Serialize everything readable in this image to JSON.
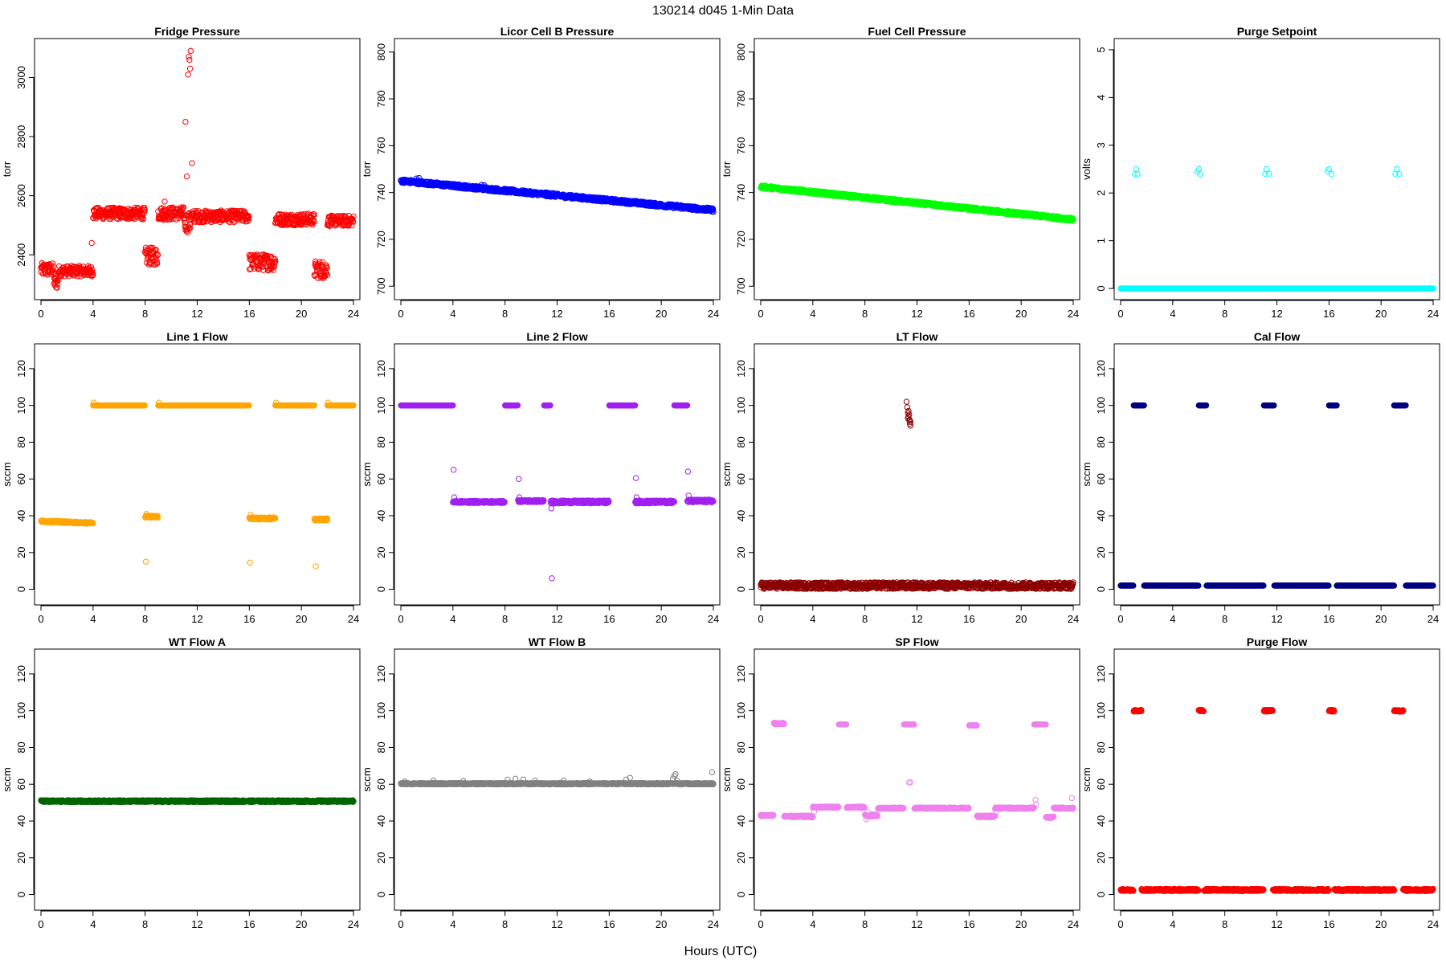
{
  "figure": {
    "title": "130214   d045   1-Min Data",
    "xlabel": "Hours (UTC)"
  },
  "chart_data": [
    {
      "type": "scatter",
      "title": "Fridge Pressure",
      "ylabel": "torr",
      "color": "#ff0000",
      "xlim": [
        0,
        24
      ],
      "ylim": [
        2270,
        3110
      ],
      "xticks": [
        0,
        4,
        8,
        12,
        16,
        20,
        24
      ],
      "yticks": [
        2400,
        2600,
        2800,
        3000
      ],
      "segments": [
        {
          "x": [
            0,
            1
          ],
          "y": 2350,
          "spread": 22
        },
        {
          "x": [
            1,
            1.3
          ],
          "y": 2305,
          "spread": 20
        },
        {
          "x": [
            1.3,
            4
          ],
          "y": 2345,
          "spread": 18
        },
        {
          "x": [
            4,
            8
          ],
          "y": 2540,
          "spread": 20
        },
        {
          "x": [
            8,
            9
          ],
          "y": 2395,
          "spread": 30
        },
        {
          "x": [
            9,
            11
          ],
          "y": 2540,
          "spread": 22
        },
        {
          "x": [
            11,
            11.5
          ],
          "y": 2510,
          "spread": 35
        },
        {
          "x": [
            11.5,
            16
          ],
          "y": 2530,
          "spread": 20
        },
        {
          "x": [
            16,
            18
          ],
          "y": 2375,
          "spread": 28
        },
        {
          "x": [
            18,
            21
          ],
          "y": 2520,
          "spread": 20
        },
        {
          "x": [
            21,
            22
          ],
          "y": 2350,
          "spread": 30
        },
        {
          "x": [
            22,
            24
          ],
          "y": 2515,
          "spread": 18
        }
      ],
      "points": [
        [
          11.1,
          2850
        ],
        [
          11.3,
          3010
        ],
        [
          11.4,
          3060
        ],
        [
          11.5,
          3090
        ],
        [
          11.45,
          3030
        ],
        [
          11.35,
          3070
        ],
        [
          11.6,
          2710
        ],
        [
          11.2,
          2665
        ],
        [
          3.9,
          2440
        ],
        [
          9.5,
          2580
        ]
      ]
    },
    {
      "type": "scatter",
      "title": "Licor Cell B Pressure",
      "ylabel": "torr",
      "color": "#0000ff",
      "xlim": [
        0,
        24
      ],
      "ylim": [
        697,
        803
      ],
      "xticks": [
        0,
        4,
        8,
        12,
        16,
        20,
        24
      ],
      "yticks": [
        700,
        720,
        740,
        760,
        780,
        800
      ],
      "segments": [
        {
          "x": [
            0,
            24
          ],
          "y": [
            745,
            732.5
          ],
          "spread": 0.8
        }
      ],
      "points": [
        [
          1.2,
          746
        ],
        [
          1.4,
          746.2
        ],
        [
          6.2,
          743.3
        ],
        [
          6.4,
          743.1
        ],
        [
          11.2,
          740
        ],
        [
          11.6,
          739.8
        ],
        [
          16.2,
          737
        ],
        [
          16.4,
          736.8
        ],
        [
          21.2,
          734.8
        ],
        [
          21.5,
          734.6
        ]
      ]
    },
    {
      "type": "scatter",
      "title": "Fuel Cell Pressure",
      "ylabel": "torr",
      "color": "#00ff00",
      "xlim": [
        0,
        24
      ],
      "ylim": [
        697,
        803
      ],
      "xticks": [
        0,
        4,
        8,
        12,
        16,
        20,
        24
      ],
      "yticks": [
        700,
        720,
        740,
        760,
        780,
        800
      ],
      "segments": [
        {
          "x": [
            0,
            24
          ],
          "y": [
            742.5,
            728.5
          ],
          "spread": 0.7
        }
      ],
      "points": []
    },
    {
      "type": "scatter",
      "title": "Purge Setpoint",
      "ylabel": "volts",
      "color": "#00ffff",
      "xlim": [
        0,
        24
      ],
      "ylim": [
        -0.1,
        5.1
      ],
      "xticks": [
        0,
        4,
        8,
        12,
        16,
        20,
        24
      ],
      "yticks": [
        0,
        1,
        2,
        3,
        4,
        5
      ],
      "segments": [
        {
          "x": [
            0,
            24
          ],
          "y": 0,
          "spread": 0
        }
      ],
      "points": [
        [
          1.1,
          2.4
        ],
        [
          1.2,
          2.5
        ],
        [
          1.3,
          2.4
        ],
        [
          5.9,
          2.45
        ],
        [
          6.0,
          2.5
        ],
        [
          6.1,
          2.4
        ],
        [
          11.1,
          2.4
        ],
        [
          11.2,
          2.5
        ],
        [
          11.4,
          2.4
        ],
        [
          15.9,
          2.45
        ],
        [
          16.0,
          2.5
        ],
        [
          16.2,
          2.4
        ],
        [
          21.1,
          2.4
        ],
        [
          21.2,
          2.5
        ],
        [
          21.4,
          2.4
        ]
      ]
    },
    {
      "type": "scatter",
      "title": "Line 1 Flow",
      "ylabel": "sccm",
      "color": "#ffa500",
      "xlim": [
        0,
        24
      ],
      "ylim": [
        -5,
        130
      ],
      "xticks": [
        0,
        4,
        8,
        12,
        16,
        20,
        24
      ],
      "yticks": [
        0,
        20,
        40,
        60,
        80,
        100,
        120
      ],
      "segments": [
        {
          "x": [
            0,
            4
          ],
          "y": [
            37,
            36
          ],
          "spread": 0.5
        },
        {
          "x": [
            4,
            8
          ],
          "y": 100,
          "spread": 0
        },
        {
          "x": [
            8,
            9
          ],
          "y": 39.5,
          "spread": 0.5
        },
        {
          "x": [
            9,
            16
          ],
          "y": 100,
          "spread": 0
        },
        {
          "x": [
            16,
            18
          ],
          "y": 38.5,
          "spread": 0.6
        },
        {
          "x": [
            18,
            21
          ],
          "y": 100,
          "spread": 0
        },
        {
          "x": [
            21,
            22
          ],
          "y": 38,
          "spread": 0.6
        },
        {
          "x": [
            22,
            24
          ],
          "y": 100,
          "spread": 0
        }
      ],
      "points": [
        [
          4.05,
          101.5
        ],
        [
          9.05,
          101.5
        ],
        [
          18.05,
          101.5
        ],
        [
          22.05,
          101.5
        ],
        [
          8.05,
          15
        ],
        [
          16.05,
          14.5
        ],
        [
          21.1,
          12.5
        ],
        [
          8.1,
          41
        ],
        [
          16.1,
          40.5
        ]
      ]
    },
    {
      "type": "scatter",
      "title": "Line 2 Flow",
      "ylabel": "sccm",
      "color": "#a020f0",
      "xlim": [
        0,
        24
      ],
      "ylim": [
        -5,
        130
      ],
      "xticks": [
        0,
        4,
        8,
        12,
        16,
        20,
        24
      ],
      "yticks": [
        0,
        20,
        40,
        60,
        80,
        100,
        120
      ],
      "segments": [
        {
          "x": [
            0,
            4
          ],
          "y": 100,
          "spread": 0
        },
        {
          "x": [
            4,
            8
          ],
          "y": 47.5,
          "spread": 0.6
        },
        {
          "x": [
            8,
            9
          ],
          "y": 100,
          "spread": 0
        },
        {
          "x": [
            9,
            11
          ],
          "y": 48,
          "spread": 0.6
        },
        {
          "x": [
            11,
            11.5
          ],
          "y": 100,
          "spread": 0
        },
        {
          "x": [
            11.5,
            16
          ],
          "y": 47.5,
          "spread": 0.8
        },
        {
          "x": [
            16,
            18
          ],
          "y": 100,
          "spread": 0
        },
        {
          "x": [
            18,
            21
          ],
          "y": 47.5,
          "spread": 0.8
        },
        {
          "x": [
            21,
            22
          ],
          "y": 100,
          "spread": 0
        },
        {
          "x": [
            22,
            24
          ],
          "y": 48,
          "spread": 0.8
        }
      ],
      "points": [
        [
          4.05,
          65
        ],
        [
          4.1,
          50
        ],
        [
          9.05,
          60
        ],
        [
          9.1,
          50
        ],
        [
          11.6,
          6
        ],
        [
          11.55,
          44
        ],
        [
          18.05,
          60.5
        ],
        [
          18.1,
          50
        ],
        [
          22.05,
          64
        ],
        [
          22.1,
          51
        ]
      ]
    },
    {
      "type": "scatter",
      "title": "LT Flow",
      "ylabel": "sccm",
      "color": "#8b0000",
      "xlim": [
        0,
        24
      ],
      "ylim": [
        -5,
        130
      ],
      "xticks": [
        0,
        4,
        8,
        12,
        16,
        20,
        24
      ],
      "yticks": [
        0,
        20,
        40,
        60,
        80,
        100,
        120
      ],
      "segments": [
        {
          "x": [
            0,
            24
          ],
          "y": 2,
          "spread": 1.8
        }
      ],
      "points": [
        [
          11.2,
          102
        ],
        [
          11.25,
          99
        ],
        [
          11.3,
          96
        ],
        [
          11.35,
          94
        ],
        [
          11.4,
          92
        ],
        [
          11.45,
          90
        ],
        [
          11.5,
          91
        ],
        [
          11.3,
          93
        ],
        [
          11.4,
          95
        ],
        [
          11.5,
          89
        ],
        [
          11.35,
          97
        ],
        [
          11.45,
          92
        ]
      ]
    },
    {
      "type": "scatter",
      "title": "Cal Flow",
      "ylabel": "sccm",
      "color": "#000080",
      "xlim": [
        0,
        24
      ],
      "ylim": [
        -5,
        130
      ],
      "xticks": [
        0,
        4,
        8,
        12,
        16,
        20,
        24
      ],
      "yticks": [
        0,
        20,
        40,
        60,
        80,
        100,
        120
      ],
      "segments": [
        {
          "x": [
            0,
            1
          ],
          "y": 2,
          "spread": 0
        },
        {
          "x": [
            1,
            1.8
          ],
          "y": 100,
          "spread": 0
        },
        {
          "x": [
            1.8,
            6
          ],
          "y": 2,
          "spread": 0
        },
        {
          "x": [
            6,
            6.6
          ],
          "y": 100,
          "spread": 0
        },
        {
          "x": [
            6.6,
            11
          ],
          "y": 2,
          "spread": 0
        },
        {
          "x": [
            11,
            11.8
          ],
          "y": 100,
          "spread": 0
        },
        {
          "x": [
            11.8,
            16
          ],
          "y": 2,
          "spread": 0
        },
        {
          "x": [
            16,
            16.6
          ],
          "y": 100,
          "spread": 0
        },
        {
          "x": [
            16.6,
            21
          ],
          "y": 2,
          "spread": 0
        },
        {
          "x": [
            21,
            21.9
          ],
          "y": 100,
          "spread": 0
        },
        {
          "x": [
            21.9,
            24
          ],
          "y": 2,
          "spread": 0
        }
      ],
      "points": []
    },
    {
      "type": "scatter",
      "title": "WT Flow A",
      "ylabel": "sccm",
      "color": "#006400",
      "xlim": [
        0,
        24
      ],
      "ylim": [
        -5,
        130
      ],
      "xticks": [
        0,
        4,
        8,
        12,
        16,
        20,
        24
      ],
      "yticks": [
        0,
        20,
        40,
        60,
        80,
        100,
        120
      ],
      "segments": [
        {
          "x": [
            0,
            24
          ],
          "y": 50.8,
          "spread": 0.5
        }
      ],
      "points": []
    },
    {
      "type": "scatter",
      "title": "WT Flow B",
      "ylabel": "sccm",
      "color": "#808080",
      "xlim": [
        0,
        24
      ],
      "ylim": [
        -5,
        130
      ],
      "xticks": [
        0,
        4,
        8,
        12,
        16,
        20,
        24
      ],
      "yticks": [
        0,
        20,
        40,
        60,
        80,
        100,
        120
      ],
      "segments": [
        {
          "x": [
            0,
            24
          ],
          "y": 60.3,
          "spread": 0.4
        }
      ],
      "points": [
        [
          0.3,
          61.5
        ],
        [
          2.5,
          62
        ],
        [
          4.8,
          61.8
        ],
        [
          8.2,
          62.5
        ],
        [
          8.8,
          63
        ],
        [
          9.4,
          62.6
        ],
        [
          10.3,
          62
        ],
        [
          12.5,
          62
        ],
        [
          14.5,
          61.5
        ],
        [
          17.3,
          62.5
        ],
        [
          17.6,
          63.5
        ],
        [
          20.9,
          63
        ],
        [
          21.0,
          64.5
        ],
        [
          21.1,
          65.5
        ],
        [
          21.2,
          62
        ],
        [
          23.9,
          66.5
        ]
      ]
    },
    {
      "type": "scatter",
      "title": "SP Flow",
      "ylabel": "sccm",
      "color": "#ee82ee",
      "xlim": [
        0,
        24
      ],
      "ylim": [
        -5,
        130
      ],
      "xticks": [
        0,
        4,
        8,
        12,
        16,
        20,
        24
      ],
      "yticks": [
        0,
        20,
        40,
        60,
        80,
        100,
        120
      ],
      "segments": [
        {
          "x": [
            0,
            1
          ],
          "y": 43,
          "spread": 0.4
        },
        {
          "x": [
            1,
            1.8
          ],
          "y": 93,
          "spread": 0.5
        },
        {
          "x": [
            1.8,
            4
          ],
          "y": 42.5,
          "spread": 0.5
        },
        {
          "x": [
            4,
            6
          ],
          "y": 47.5,
          "spread": 0.4
        },
        {
          "x": [
            6,
            6.6
          ],
          "y": 92.5,
          "spread": 0
        },
        {
          "x": [
            6.6,
            8
          ],
          "y": 47.5,
          "spread": 0.4
        },
        {
          "x": [
            8,
            9
          ],
          "y": 43,
          "spread": 0.6
        },
        {
          "x": [
            9,
            11
          ],
          "y": 47,
          "spread": 0.4
        },
        {
          "x": [
            11,
            11.8
          ],
          "y": 92.5,
          "spread": 0
        },
        {
          "x": [
            11.8,
            16
          ],
          "y": 47,
          "spread": 0.4
        },
        {
          "x": [
            16,
            16.6
          ],
          "y": 92,
          "spread": 0
        },
        {
          "x": [
            16.6,
            18
          ],
          "y": 42.5,
          "spread": 0.5
        },
        {
          "x": [
            18,
            21
          ],
          "y": 47,
          "spread": 0.4
        },
        {
          "x": [
            21,
            21.9
          ],
          "y": 92.5,
          "spread": 0
        },
        {
          "x": [
            21.9,
            22.5
          ],
          "y": 42,
          "spread": 0.4
        },
        {
          "x": [
            22.5,
            24
          ],
          "y": 47,
          "spread": 0.4
        }
      ],
      "points": [
        [
          11.4,
          61
        ],
        [
          11.5,
          61
        ],
        [
          8.1,
          41
        ],
        [
          8.2,
          45
        ],
        [
          21.1,
          51.5
        ],
        [
          21.15,
          49
        ],
        [
          23.9,
          52.5
        ],
        [
          4.1,
          45
        ],
        [
          18.1,
          45
        ]
      ]
    },
    {
      "type": "scatter",
      "title": "Purge Flow",
      "ylabel": "sccm",
      "color": "#ff0000",
      "xlim": [
        0,
        24
      ],
      "ylim": [
        -5,
        130
      ],
      "xticks": [
        0,
        4,
        8,
        12,
        16,
        20,
        24
      ],
      "yticks": [
        0,
        20,
        40,
        60,
        80,
        100,
        120
      ],
      "segments": [
        {
          "x": [
            0,
            1
          ],
          "y": 2.5,
          "spread": 0.6
        },
        {
          "x": [
            1,
            1.6
          ],
          "y": 100,
          "spread": 0.5
        },
        {
          "x": [
            1.6,
            6
          ],
          "y": 2.5,
          "spread": 0.6
        },
        {
          "x": [
            6,
            6.4
          ],
          "y": 100,
          "spread": 0.5
        },
        {
          "x": [
            6.4,
            11
          ],
          "y": 2.5,
          "spread": 0.6
        },
        {
          "x": [
            11,
            11.7
          ],
          "y": 100,
          "spread": 0.5
        },
        {
          "x": [
            11.7,
            16
          ],
          "y": 2.5,
          "spread": 0.6
        },
        {
          "x": [
            16,
            16.4
          ],
          "y": 100,
          "spread": 0.5
        },
        {
          "x": [
            16.4,
            21
          ],
          "y": 2.5,
          "spread": 0.6
        },
        {
          "x": [
            21,
            21.7
          ],
          "y": 100,
          "spread": 0.5
        },
        {
          "x": [
            21.7,
            24
          ],
          "y": 2.5,
          "spread": 0.6
        }
      ],
      "points": []
    }
  ]
}
